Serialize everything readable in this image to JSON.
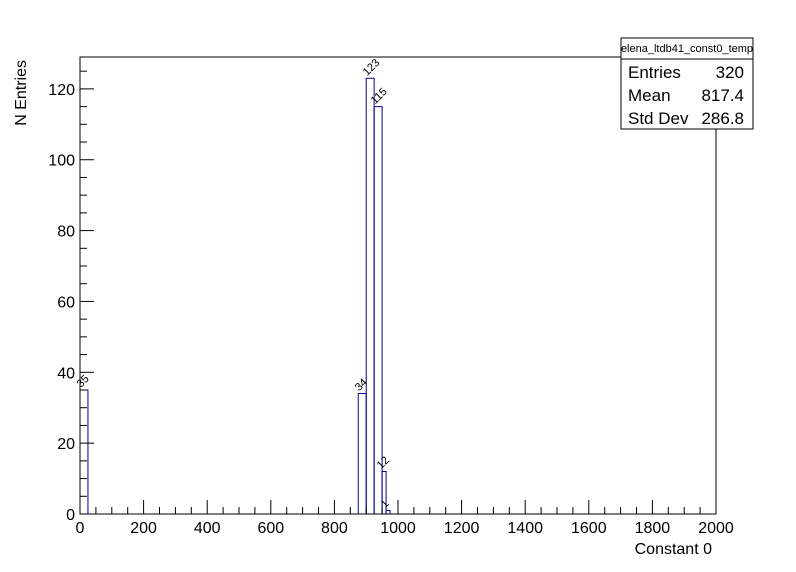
{
  "chart_data": {
    "type": "bar",
    "histogram_name": "elena_ltdb41_const0_temp",
    "xlabel": "Constant 0",
    "ylabel": "N Entries",
    "xlim": [
      0,
      2000
    ],
    "ylim": [
      0,
      129
    ],
    "bin_width": 12.5,
    "xticks": [
      0,
      200,
      400,
      600,
      800,
      1000,
      1200,
      1400,
      1600,
      1800,
      2000
    ],
    "yticks": [
      0,
      20,
      40,
      60,
      80,
      100,
      120
    ],
    "bins": [
      {
        "x0": 0,
        "x1": 25,
        "value": 35,
        "label": "35"
      },
      {
        "x0": 875,
        "x1": 900,
        "value": 34,
        "label": "34"
      },
      {
        "x0": 900,
        "x1": 925,
        "value": 123,
        "label": "123"
      },
      {
        "x0": 925,
        "x1": 950,
        "value": 115,
        "label": "115"
      },
      {
        "x0": 950,
        "x1": 962.5,
        "value": 12,
        "label": "12"
      },
      {
        "x0": 962.5,
        "x1": 975,
        "value": 1,
        "label": "1"
      }
    ],
    "stats": {
      "title": "elena_ltdb41_const0_temp",
      "rows": [
        {
          "name": "Entries",
          "value": "320"
        },
        {
          "name": "Mean",
          "value": "817.4"
        },
        {
          "name": "Std Dev",
          "value": "286.8"
        }
      ]
    },
    "colors": {
      "line": "#000099",
      "axis": "#000000"
    }
  }
}
